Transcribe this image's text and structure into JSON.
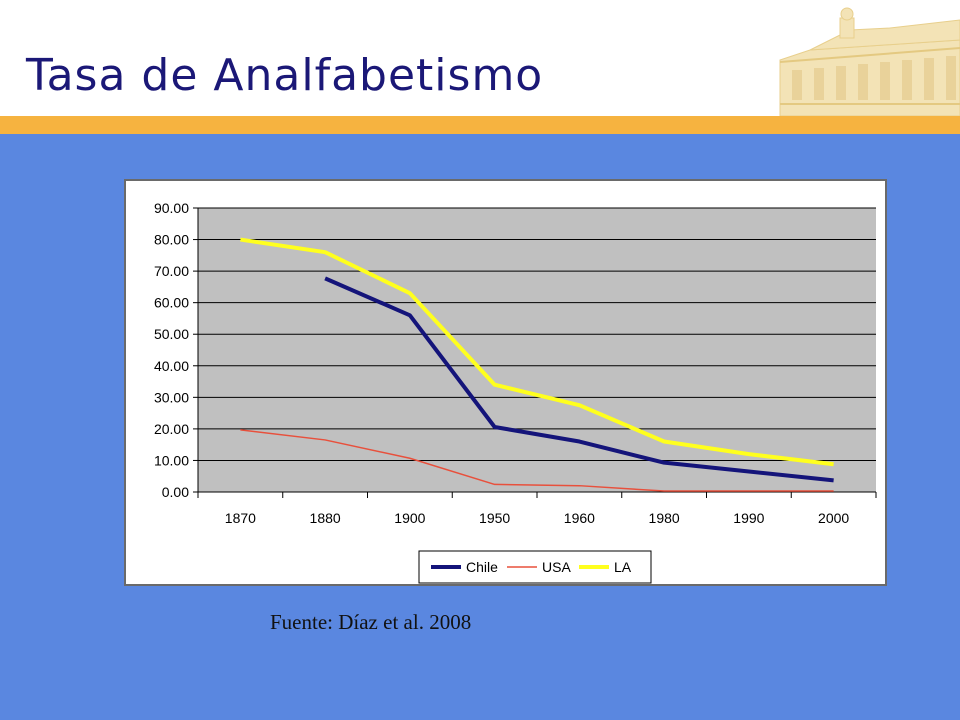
{
  "slide": {
    "title": "Tasa de Analfabetismo",
    "source": "Fuente: Díaz et al. 2008"
  },
  "colors": {
    "title": "#1b1877",
    "background": "#5a87e0",
    "band": "#f6b340",
    "plot_area": "#c0c0c0"
  },
  "chart_data": {
    "type": "line",
    "categories": [
      "1870",
      "1880",
      "1900",
      "1950",
      "1960",
      "1980",
      "1990",
      "2000"
    ],
    "series": [
      {
        "name": "Chile",
        "color": "#14147a",
        "values": [
          null,
          67.7,
          56.0,
          20.6,
          16.0,
          9.3,
          6.5,
          3.7
        ]
      },
      {
        "name": "USA",
        "color": "#e8503c",
        "values": [
          19.7,
          16.5,
          10.7,
          2.4,
          2.0,
          0.3,
          0.3,
          0.3
        ]
      },
      {
        "name": "LA",
        "color": "#ffff1e",
        "values": [
          80.0,
          76.0,
          63.0,
          34.0,
          27.5,
          16.0,
          12.0,
          8.8
        ]
      }
    ],
    "yticks": [
      "0.00",
      "10.00",
      "20.00",
      "30.00",
      "40.00",
      "50.00",
      "60.00",
      "70.00",
      "80.00",
      "90.00"
    ],
    "ylim": [
      0,
      90
    ],
    "grid": true,
    "legend_position": "bottom",
    "title": "",
    "xlabel": "",
    "ylabel": ""
  }
}
